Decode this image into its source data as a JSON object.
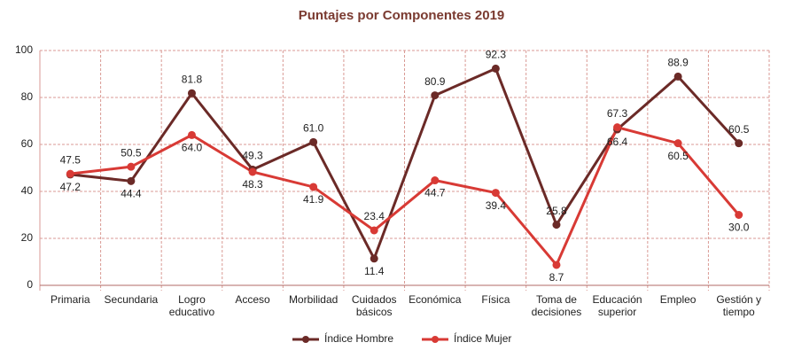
{
  "chart_data": {
    "type": "line",
    "title": "Puntajes por Componentes 2019",
    "categories": [
      "Primaria",
      "Secundaria",
      "Logro\neducativo",
      "Acceso",
      "Morbilidad",
      "Cuidados\nbásicos",
      "Económica",
      "Física",
      "Toma de\ndecisiones",
      "Educación\nsuperior",
      "Empleo",
      "Gestión y\ntiempo"
    ],
    "series": [
      {
        "name": "Índice Hombre",
        "color": "#6b2a27",
        "values": [
          47.2,
          44.4,
          81.8,
          49.3,
          61.0,
          11.4,
          80.9,
          92.3,
          25.8,
          66.4,
          88.9,
          60.5
        ],
        "value_labels": [
          "47.2",
          "44.4",
          "81.8",
          "49.3",
          "61.0",
          "11.4",
          "80.9",
          "92.3",
          "25.8",
          "66.4",
          "88.9",
          "60.5"
        ]
      },
      {
        "name": "Índice Mujer",
        "color": "#d83a35",
        "values": [
          47.5,
          50.5,
          64.0,
          48.3,
          41.9,
          23.4,
          44.7,
          39.4,
          8.7,
          67.3,
          60.5,
          30.0
        ],
        "value_labels": [
          "47.5",
          "50.5",
          "64.0",
          "48.3",
          "41.9",
          "23.4",
          "44.7",
          "39.4",
          "8.7",
          "67.3",
          "60.5",
          "30.0"
        ]
      }
    ],
    "ylim": [
      0,
      100
    ],
    "yticks": [
      0,
      20,
      40,
      60,
      80,
      100
    ],
    "grid": true,
    "legend": "bottom"
  }
}
